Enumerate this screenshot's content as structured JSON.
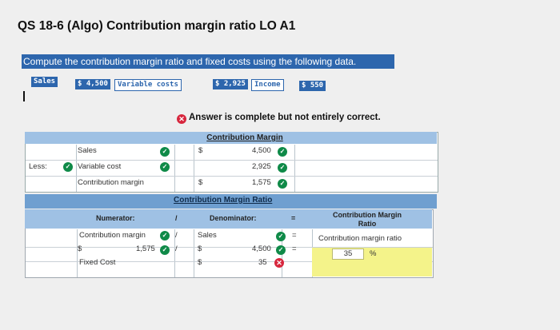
{
  "header": {
    "title": "QS 18-6 (Algo) Contribution margin ratio LO A1"
  },
  "instructions": {
    "prompt": "Compute the contribution margin ratio and fixed costs using the following data."
  },
  "given_data": {
    "sales_label": "Sales",
    "sales_value": "$ 4,500",
    "variable_costs_label": "Variable costs",
    "variable_costs_value": "$ 2,925",
    "income_label": "Income",
    "income_value": "$ 550"
  },
  "status": {
    "icon": "x-circle-icon",
    "message": "Answer is complete but not entirely correct."
  },
  "contribution_margin_table": {
    "header": "Contribution Margin",
    "rows": [
      {
        "prefix": "",
        "label": "Sales",
        "currency": "$",
        "value": "4,500"
      },
      {
        "prefix": "Less:",
        "label": "Variable cost",
        "currency": "",
        "value": "2,925"
      },
      {
        "prefix": "",
        "label": "Contribution margin",
        "currency": "$",
        "value": "1,575"
      }
    ]
  },
  "ratio_table": {
    "header": "Contribution Margin Ratio",
    "numerator_label": "Numerator:",
    "slash": "/",
    "denominator_label": "Denominator:",
    "equals": "=",
    "result_label": "Contribution Margin Ratio",
    "row1": {
      "numerator": "Contribution margin",
      "denominator": "Sales",
      "result": "Contribution margin ratio"
    },
    "row2": {
      "num_currency": "$",
      "num_value": "1,575",
      "den_currency": "$",
      "den_value": "4,500",
      "result_value": "35",
      "result_unit": "%"
    },
    "row3": {
      "numerator": "Fixed Cost",
      "den_currency": "$",
      "den_value": "35"
    }
  },
  "colors": {
    "accent": "#2d66ad",
    "correct": "#0f8a48",
    "incorrect": "#d7263d",
    "highlight": "#f4f38a"
  }
}
